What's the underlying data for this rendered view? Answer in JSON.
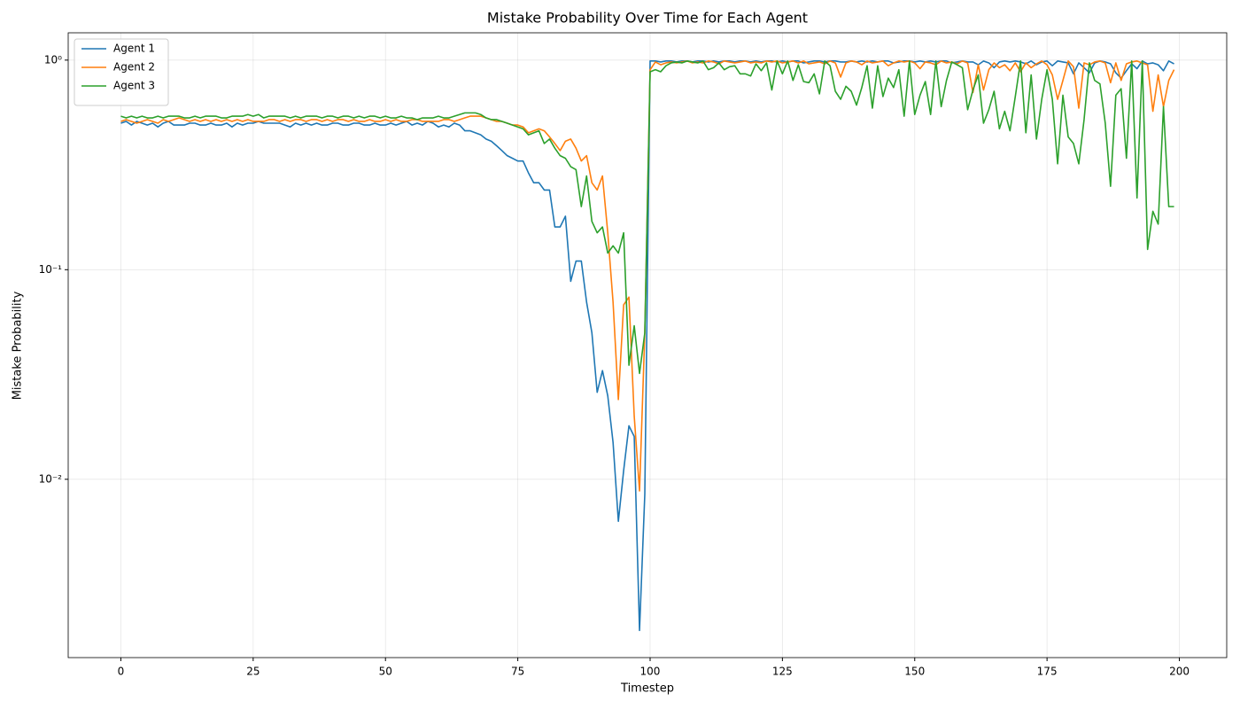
{
  "chart_data": {
    "type": "line",
    "title": "Mistake Probability Over Time for Each Agent",
    "x_label": "Timestep",
    "y_label": "Mistake Probability",
    "yscale": "log",
    "grid": true,
    "legend": "upper left",
    "xlim": [
      -9.95,
      208.95
    ],
    "ylim": [
      0.00141,
      1.35
    ],
    "xticks": [
      0,
      25,
      50,
      75,
      100,
      125,
      150,
      175,
      200
    ],
    "yticks": [
      {
        "value": 0.01,
        "label": "10⁻²"
      },
      {
        "value": 0.1,
        "label": "10⁻¹"
      },
      {
        "value": 1,
        "label": "10⁰"
      }
    ],
    "x": [
      0,
      1,
      2,
      3,
      4,
      5,
      6,
      7,
      8,
      9,
      10,
      11,
      12,
      13,
      14,
      15,
      16,
      17,
      18,
      19,
      20,
      21,
      22,
      23,
      24,
      25,
      26,
      27,
      28,
      29,
      30,
      31,
      32,
      33,
      34,
      35,
      36,
      37,
      38,
      39,
      40,
      41,
      42,
      43,
      44,
      45,
      46,
      47,
      48,
      49,
      50,
      51,
      52,
      53,
      54,
      55,
      56,
      57,
      58,
      59,
      60,
      61,
      62,
      63,
      64,
      65,
      66,
      67,
      68,
      69,
      70,
      71,
      72,
      73,
      74,
      75,
      76,
      77,
      78,
      79,
      80,
      81,
      82,
      83,
      84,
      85,
      86,
      87,
      88,
      89,
      90,
      91,
      92,
      93,
      94,
      95,
      96,
      97,
      98,
      99,
      100,
      101,
      102,
      103,
      104,
      105,
      106,
      107,
      108,
      109,
      110,
      111,
      112,
      113,
      114,
      115,
      116,
      117,
      118,
      119,
      120,
      121,
      122,
      123,
      124,
      125,
      126,
      127,
      128,
      129,
      130,
      131,
      132,
      133,
      134,
      135,
      136,
      137,
      138,
      139,
      140,
      141,
      142,
      143,
      144,
      145,
      146,
      147,
      148,
      149,
      150,
      151,
      152,
      153,
      154,
      155,
      156,
      157,
      158,
      159,
      160,
      161,
      162,
      163,
      164,
      165,
      166,
      167,
      168,
      169,
      170,
      171,
      172,
      173,
      174,
      175,
      176,
      177,
      178,
      179,
      180,
      181,
      182,
      183,
      184,
      185,
      186,
      187,
      188,
      189,
      190,
      191,
      192,
      193,
      194,
      195,
      196,
      197,
      198,
      199
    ],
    "series": [
      {
        "name": "Agent 1",
        "color": "#1f77b4",
        "values": [
          0.5,
          0.51,
          0.49,
          0.51,
          0.5,
          0.49,
          0.5,
          0.48,
          0.5,
          0.51,
          0.49,
          0.49,
          0.49,
          0.5,
          0.5,
          0.49,
          0.49,
          0.5,
          0.49,
          0.49,
          0.5,
          0.48,
          0.5,
          0.49,
          0.5,
          0.5,
          0.51,
          0.5,
          0.5,
          0.5,
          0.5,
          0.49,
          0.48,
          0.5,
          0.49,
          0.5,
          0.49,
          0.5,
          0.49,
          0.49,
          0.5,
          0.5,
          0.49,
          0.49,
          0.5,
          0.5,
          0.49,
          0.49,
          0.5,
          0.49,
          0.49,
          0.5,
          0.49,
          0.5,
          0.51,
          0.49,
          0.5,
          0.49,
          0.51,
          0.5,
          0.48,
          0.49,
          0.48,
          0.5,
          0.49,
          0.46,
          0.46,
          0.45,
          0.44,
          0.42,
          0.41,
          0.39,
          0.37,
          0.35,
          0.34,
          0.33,
          0.33,
          0.29,
          0.26,
          0.26,
          0.24,
          0.24,
          0.16,
          0.16,
          0.18,
          0.088,
          0.11,
          0.11,
          0.07,
          0.05,
          0.026,
          0.033,
          0.025,
          0.015,
          0.0063,
          0.011,
          0.018,
          0.016,
          0.0019,
          0.0085,
          0.99,
          0.99,
          0.98,
          0.99,
          0.99,
          0.98,
          0.99,
          0.99,
          0.98,
          0.99,
          0.99,
          0.98,
          0.99,
          0.98,
          0.99,
          0.99,
          0.98,
          0.99,
          0.99,
          0.98,
          0.99,
          0.98,
          0.99,
          0.99,
          0.98,
          0.99,
          0.98,
          0.99,
          0.99,
          0.97,
          0.98,
          0.99,
          0.99,
          0.98,
          0.99,
          0.99,
          0.98,
          0.98,
          0.99,
          0.98,
          0.99,
          0.98,
          0.99,
          0.98,
          0.99,
          0.99,
          0.97,
          0.98,
          0.99,
          0.99,
          0.98,
          0.99,
          0.98,
          0.99,
          0.98,
          0.99,
          0.99,
          0.97,
          0.98,
          0.99,
          0.98,
          0.98,
          0.95,
          0.99,
          0.97,
          0.92,
          0.98,
          0.99,
          0.98,
          0.99,
          0.98,
          0.96,
          0.99,
          0.95,
          0.98,
          0.99,
          0.94,
          0.99,
          0.98,
          0.97,
          0.86,
          0.97,
          0.92,
          0.87,
          0.97,
          0.99,
          0.98,
          0.96,
          0.87,
          0.82,
          0.89,
          0.96,
          0.91,
          0.99,
          0.96,
          0.97,
          0.95,
          0.89,
          0.99,
          0.96
        ]
      },
      {
        "name": "Agent 2",
        "color": "#ff7f0e",
        "values": [
          0.51,
          0.52,
          0.51,
          0.5,
          0.51,
          0.52,
          0.51,
          0.5,
          0.52,
          0.51,
          0.52,
          0.53,
          0.52,
          0.51,
          0.52,
          0.51,
          0.52,
          0.51,
          0.52,
          0.51,
          0.52,
          0.51,
          0.52,
          0.51,
          0.52,
          0.51,
          0.51,
          0.51,
          0.52,
          0.52,
          0.51,
          0.52,
          0.51,
          0.52,
          0.52,
          0.51,
          0.52,
          0.52,
          0.51,
          0.52,
          0.51,
          0.52,
          0.52,
          0.51,
          0.52,
          0.51,
          0.51,
          0.52,
          0.51,
          0.51,
          0.52,
          0.51,
          0.52,
          0.51,
          0.51,
          0.52,
          0.52,
          0.51,
          0.51,
          0.51,
          0.51,
          0.52,
          0.52,
          0.51,
          0.52,
          0.53,
          0.54,
          0.54,
          0.54,
          0.53,
          0.52,
          0.51,
          0.51,
          0.5,
          0.49,
          0.49,
          0.48,
          0.45,
          0.46,
          0.47,
          0.46,
          0.43,
          0.4,
          0.37,
          0.41,
          0.42,
          0.38,
          0.33,
          0.35,
          0.26,
          0.24,
          0.28,
          0.15,
          0.07,
          0.024,
          0.068,
          0.074,
          0.02,
          0.0088,
          0.05,
          0.9,
          0.98,
          0.95,
          0.97,
          0.98,
          0.97,
          0.98,
          0.99,
          0.97,
          0.98,
          0.97,
          0.99,
          0.98,
          0.96,
          0.99,
          0.98,
          0.97,
          0.98,
          0.99,
          0.97,
          0.98,
          0.97,
          0.99,
          0.98,
          0.99,
          0.97,
          0.98,
          0.99,
          0.97,
          0.99,
          0.96,
          0.97,
          0.98,
          0.96,
          0.99,
          0.97,
          0.83,
          0.97,
          0.99,
          0.98,
          0.95,
          0.99,
          0.97,
          0.98,
          0.99,
          0.94,
          0.97,
          0.99,
          0.98,
          0.99,
          0.97,
          0.91,
          0.98,
          0.97,
          0.95,
          0.99,
          0.97,
          0.98,
          0.96,
          0.99,
          0.97,
          0.7,
          0.95,
          0.72,
          0.9,
          0.97,
          0.92,
          0.95,
          0.89,
          0.97,
          0.88,
          0.97,
          0.92,
          0.96,
          0.99,
          0.95,
          0.85,
          0.65,
          0.8,
          0.99,
          0.93,
          0.59,
          0.97,
          0.95,
          0.98,
          0.99,
          0.97,
          0.78,
          0.97,
          0.8,
          0.96,
          0.98,
          0.99,
          0.97,
          0.95,
          0.57,
          0.85,
          0.6,
          0.8,
          0.9
        ]
      },
      {
        "name": "Agent 3",
        "color": "#2ca02c",
        "values": [
          0.54,
          0.53,
          0.54,
          0.53,
          0.54,
          0.53,
          0.53,
          0.54,
          0.53,
          0.54,
          0.54,
          0.54,
          0.53,
          0.53,
          0.54,
          0.53,
          0.54,
          0.54,
          0.54,
          0.53,
          0.53,
          0.54,
          0.54,
          0.54,
          0.55,
          0.54,
          0.55,
          0.53,
          0.54,
          0.54,
          0.54,
          0.54,
          0.53,
          0.54,
          0.53,
          0.54,
          0.54,
          0.54,
          0.53,
          0.54,
          0.54,
          0.53,
          0.54,
          0.54,
          0.53,
          0.54,
          0.53,
          0.54,
          0.54,
          0.53,
          0.54,
          0.53,
          0.53,
          0.54,
          0.53,
          0.53,
          0.52,
          0.53,
          0.53,
          0.53,
          0.54,
          0.53,
          0.53,
          0.54,
          0.55,
          0.56,
          0.56,
          0.56,
          0.55,
          0.53,
          0.52,
          0.52,
          0.51,
          0.5,
          0.49,
          0.48,
          0.47,
          0.44,
          0.45,
          0.46,
          0.4,
          0.42,
          0.38,
          0.35,
          0.34,
          0.31,
          0.3,
          0.2,
          0.28,
          0.17,
          0.15,
          0.16,
          0.12,
          0.13,
          0.12,
          0.15,
          0.035,
          0.054,
          0.032,
          0.05,
          0.88,
          0.9,
          0.88,
          0.94,
          0.97,
          0.98,
          0.97,
          0.99,
          0.98,
          0.97,
          0.99,
          0.9,
          0.92,
          0.97,
          0.9,
          0.93,
          0.94,
          0.86,
          0.86,
          0.84,
          0.96,
          0.89,
          0.97,
          0.72,
          0.99,
          0.86,
          0.99,
          0.8,
          0.95,
          0.79,
          0.78,
          0.86,
          0.69,
          0.99,
          0.94,
          0.71,
          0.65,
          0.75,
          0.71,
          0.61,
          0.74,
          0.94,
          0.59,
          0.94,
          0.67,
          0.82,
          0.74,
          0.9,
          0.54,
          0.99,
          0.55,
          0.68,
          0.79,
          0.55,
          0.99,
          0.6,
          0.8,
          0.98,
          0.95,
          0.92,
          0.58,
          0.72,
          0.85,
          0.5,
          0.58,
          0.71,
          0.47,
          0.57,
          0.46,
          0.67,
          0.99,
          0.45,
          0.85,
          0.42,
          0.65,
          0.9,
          0.65,
          0.32,
          0.68,
          0.43,
          0.4,
          0.32,
          0.52,
          0.97,
          0.8,
          0.77,
          0.5,
          0.25,
          0.68,
          0.73,
          0.34,
          0.99,
          0.22,
          0.99,
          0.125,
          0.19,
          0.165,
          0.6,
          0.2,
          0.2
        ]
      }
    ]
  }
}
